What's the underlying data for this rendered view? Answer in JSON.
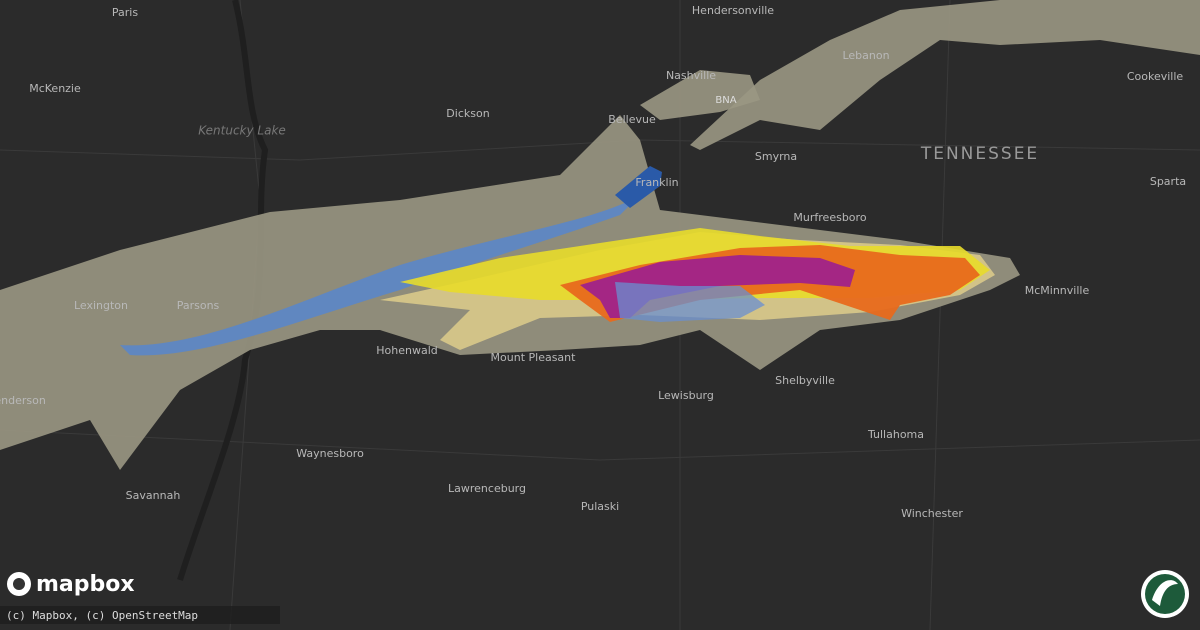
{
  "map": {
    "labels": [
      "Paris",
      "Hendersonville",
      "Nashville",
      "McKenzie",
      "Dickson",
      "Lebanon",
      "Cookeville",
      "Bellevue",
      "Franklin",
      "Smyrna",
      "Sparta",
      "Murfreesboro",
      "Lexington",
      "Parsons",
      "Hohenwald",
      "Mount Pleasant",
      "McMinnville",
      "Lewisburg",
      "Shelbyville",
      "Henderson",
      "Tullahoma",
      "Waynesboro",
      "Lawrenceburg",
      "Savannah",
      "Pulaski",
      "Winchester"
    ],
    "region_label": "TENNESSEE",
    "lake_label": "Kentucky Lake",
    "airport_label": "BNA"
  },
  "logo": {
    "text": "mapbox"
  },
  "attribution": "(c) Mapbox, (c) OpenStreetMap"
}
